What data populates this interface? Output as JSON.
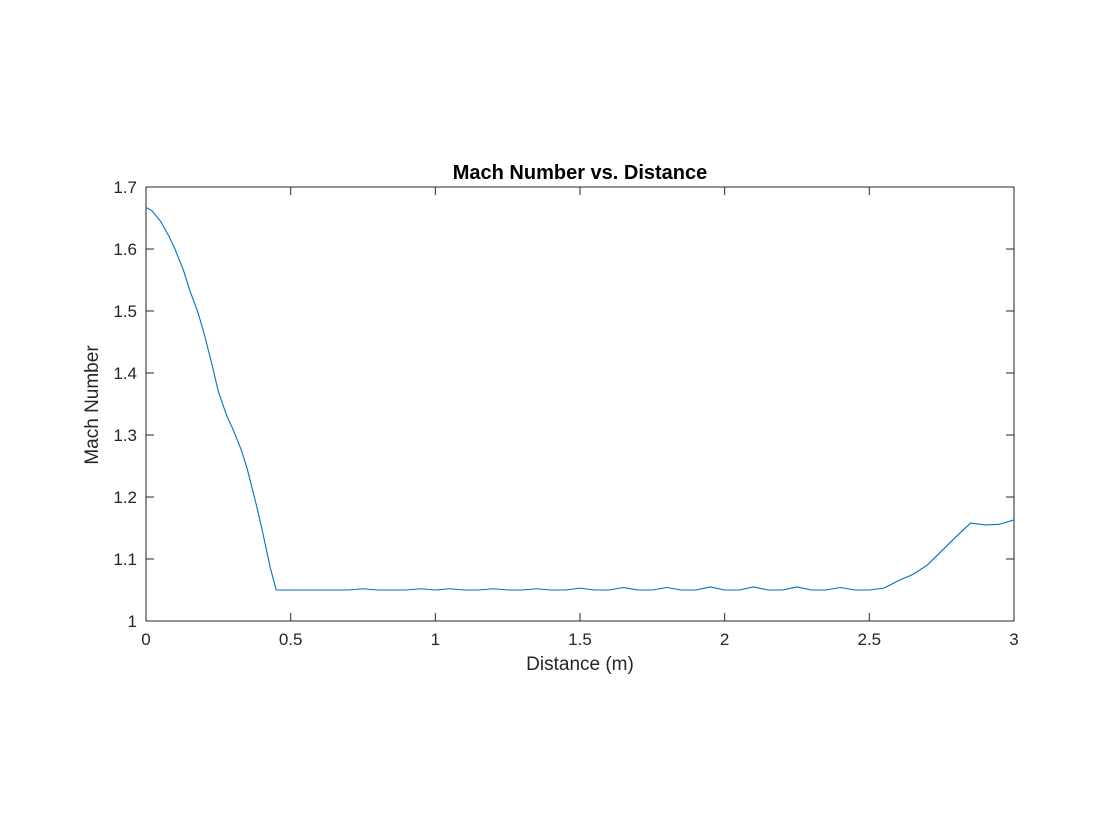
{
  "chart_data": {
    "type": "line",
    "title": "Mach Number vs. Distance",
    "xlabel": "Distance (m)",
    "ylabel": "Mach Number",
    "xlim": [
      0,
      3
    ],
    "ylim": [
      1,
      1.7
    ],
    "xticks": [
      0,
      0.5,
      1,
      1.5,
      2,
      2.5,
      3
    ],
    "xtick_labels": [
      "0",
      "0.5",
      "1",
      "1.5",
      "2",
      "2.5",
      "3"
    ],
    "yticks": [
      1,
      1.1,
      1.2,
      1.3,
      1.4,
      1.5,
      1.6,
      1.7
    ],
    "ytick_labels": [
      "1",
      "1.1",
      "1.2",
      "1.3",
      "1.4",
      "1.5",
      "1.6",
      "1.7"
    ],
    "grid": false,
    "series": [
      {
        "color": "#0072bd",
        "x": [
          0,
          0.02,
          0.05,
          0.08,
          0.1,
          0.13,
          0.15,
          0.18,
          0.2,
          0.23,
          0.25,
          0.28,
          0.3,
          0.33,
          0.35,
          0.38,
          0.4,
          0.43,
          0.45,
          0.5,
          0.55,
          0.6,
          0.65,
          0.7,
          0.75,
          0.8,
          0.85,
          0.9,
          0.95,
          1.0,
          1.05,
          1.1,
          1.15,
          1.2,
          1.25,
          1.3,
          1.35,
          1.4,
          1.45,
          1.5,
          1.55,
          1.6,
          1.65,
          1.7,
          1.75,
          1.8,
          1.85,
          1.9,
          1.95,
          2.0,
          2.05,
          2.1,
          2.15,
          2.2,
          2.25,
          2.3,
          2.35,
          2.4,
          2.45,
          2.5,
          2.55,
          2.6,
          2.65,
          2.7,
          2.75,
          2.8,
          2.85,
          2.9,
          2.95,
          3.0
        ],
        "y": [
          1.667,
          1.662,
          1.645,
          1.62,
          1.6,
          1.565,
          1.535,
          1.497,
          1.465,
          1.41,
          1.37,
          1.33,
          1.31,
          1.275,
          1.245,
          1.19,
          1.15,
          1.085,
          1.05,
          1.05,
          1.05,
          1.05,
          1.05,
          1.05,
          1.052,
          1.05,
          1.05,
          1.05,
          1.052,
          1.05,
          1.052,
          1.05,
          1.05,
          1.052,
          1.05,
          1.05,
          1.052,
          1.05,
          1.05,
          1.053,
          1.05,
          1.05,
          1.054,
          1.05,
          1.05,
          1.054,
          1.05,
          1.05,
          1.055,
          1.05,
          1.05,
          1.055,
          1.05,
          1.05,
          1.055,
          1.05,
          1.05,
          1.054,
          1.05,
          1.05,
          1.053,
          1.065,
          1.075,
          1.09,
          1.113,
          1.136,
          1.158,
          1.155,
          1.156,
          1.163
        ]
      }
    ]
  }
}
